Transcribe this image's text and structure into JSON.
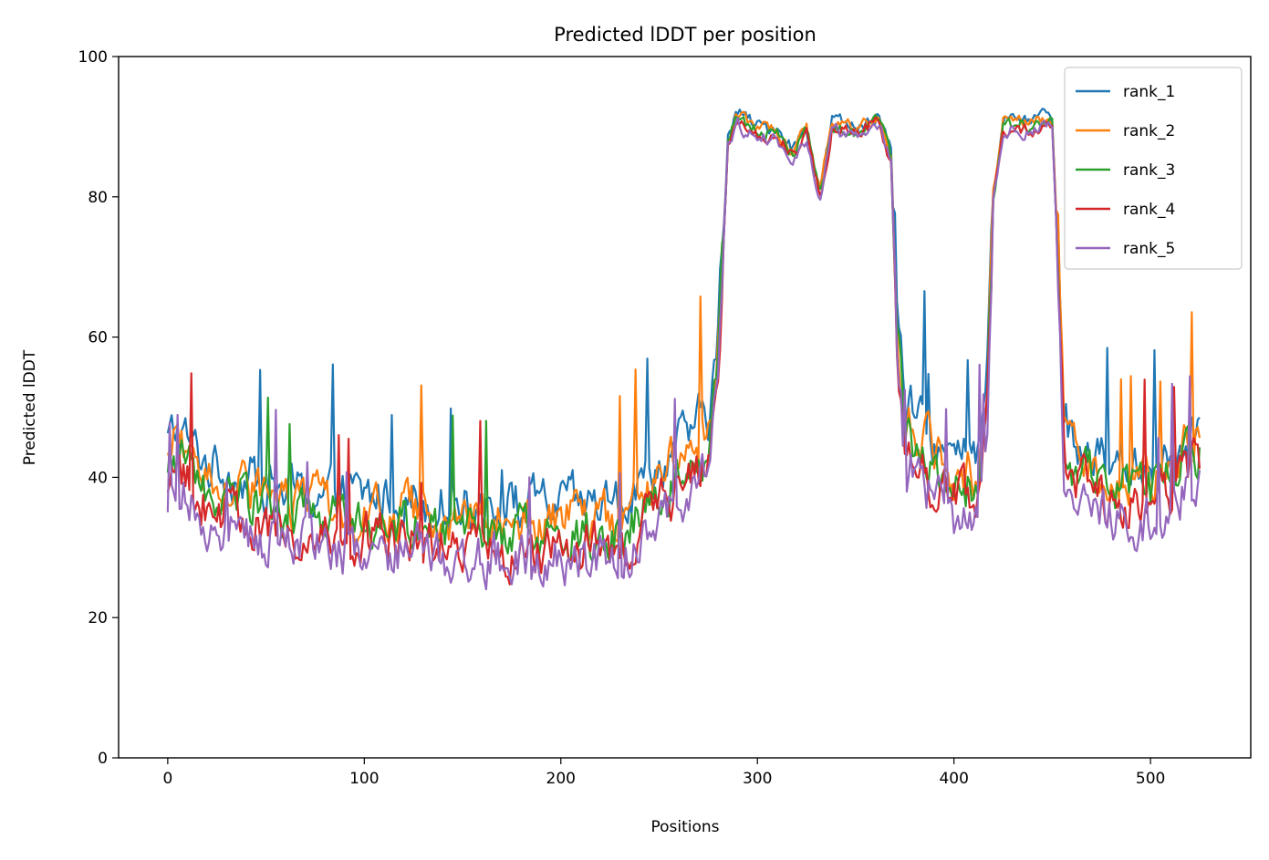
{
  "chart_data": {
    "type": "line",
    "title": "Predicted lDDT per position",
    "xlabel": "Positions",
    "ylabel": "Predicted lDDT",
    "xlim": [
      -25,
      551
    ],
    "ylim": [
      0,
      100
    ],
    "xticks": [
      0,
      100,
      200,
      300,
      400,
      500
    ],
    "yticks": [
      0,
      20,
      40,
      60,
      80,
      100
    ],
    "legend_position": "top-right",
    "grid": false,
    "n_positions": 526,
    "series": [
      {
        "name": "rank_1",
        "color": "#1f77b4"
      },
      {
        "name": "rank_2",
        "color": "#ff7f0e"
      },
      {
        "name": "rank_3",
        "color": "#2ca02c"
      },
      {
        "name": "rank_4",
        "color": "#d62728"
      },
      {
        "name": "rank_5",
        "color": "#9467bd"
      }
    ],
    "profile_knots": [
      [
        0,
        40
      ],
      [
        5,
        42
      ],
      [
        20,
        37
      ],
      [
        60,
        33
      ],
      [
        120,
        32
      ],
      [
        180,
        31
      ],
      [
        230,
        31
      ],
      [
        262,
        40
      ],
      [
        275,
        44
      ],
      [
        280,
        55
      ],
      [
        285,
        88
      ],
      [
        290,
        91
      ],
      [
        300,
        89
      ],
      [
        310,
        89
      ],
      [
        318,
        86
      ],
      [
        325,
        89
      ],
      [
        332,
        80
      ],
      [
        338,
        90
      ],
      [
        350,
        89
      ],
      [
        362,
        91
      ],
      [
        368,
        85
      ],
      [
        371,
        60
      ],
      [
        375,
        45
      ],
      [
        385,
        42
      ],
      [
        400,
        37
      ],
      [
        412,
        38
      ],
      [
        417,
        50
      ],
      [
        420,
        80
      ],
      [
        425,
        90
      ],
      [
        440,
        90
      ],
      [
        447,
        91
      ],
      [
        450,
        90
      ],
      [
        453,
        70
      ],
      [
        456,
        45
      ],
      [
        460,
        40
      ],
      [
        480,
        37
      ],
      [
        500,
        37
      ],
      [
        520,
        42
      ],
      [
        525,
        43
      ]
    ],
    "series_offsets": [
      5,
      3,
      1,
      -1,
      -3
    ]
  }
}
